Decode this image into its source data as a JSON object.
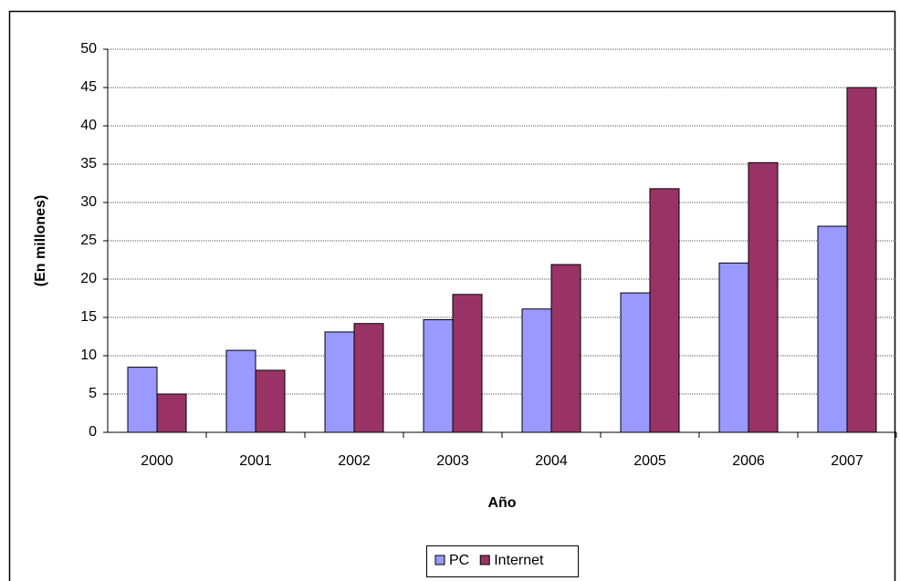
{
  "chart_data": {
    "type": "bar",
    "x_label": "Año",
    "y_label": "(En millones)",
    "categories": [
      "2000",
      "2001",
      "2002",
      "2003",
      "2004",
      "2005",
      "2006",
      "2007"
    ],
    "series": [
      {
        "name": "PC",
        "color": "#9999ff",
        "values": [
          8.5,
          10.7,
          13.1,
          14.7,
          16.1,
          18.2,
          22.1,
          26.9
        ]
      },
      {
        "name": "Internet",
        "color": "#993366",
        "values": [
          5.0,
          8.1,
          14.2,
          18.0,
          21.9,
          31.8,
          35.2,
          45.0
        ]
      }
    ],
    "ylim": [
      0,
      50
    ],
    "yticks": [
      0,
      5,
      10,
      15,
      20,
      25,
      30,
      35,
      40,
      45,
      50
    ],
    "grid": true,
    "legend": "bottom"
  }
}
